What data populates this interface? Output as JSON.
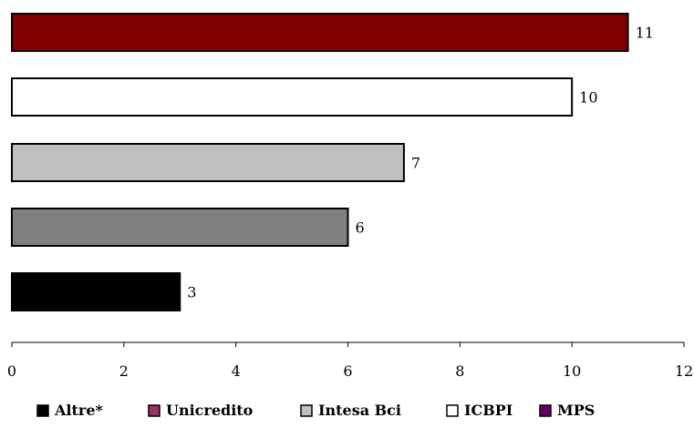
{
  "chart_data": {
    "type": "bar",
    "orientation": "horizontal",
    "categories": [
      "Unicredito",
      "Intesa Bci",
      "ICBPI",
      "MPS",
      "Altre*"
    ],
    "bars": [
      {
        "series": "Unicredito",
        "value": 11,
        "label": "11",
        "color": "#800000"
      },
      {
        "series": "ICBPI",
        "value": 10,
        "label": "10",
        "color": "#FFFFFF"
      },
      {
        "series": "Intesa Bci",
        "value": 7,
        "label": "7",
        "color": "#C0C0C0"
      },
      {
        "series": "MPS",
        "value": 6,
        "label": "6",
        "color": "#808080"
      },
      {
        "series": "Altre*",
        "value": 3,
        "label": "3",
        "color": "#000000"
      }
    ],
    "xlim": [
      0,
      12
    ],
    "xticks": [
      "0",
      "2",
      "4",
      "6",
      "8",
      "10",
      "12"
    ],
    "title": "",
    "xlabel": "",
    "ylabel": "",
    "grid": false,
    "legend": {
      "placement": "bottom",
      "items": [
        {
          "label": "Altre*",
          "color": "#000000"
        },
        {
          "label": "Unicredito",
          "color": "#993366"
        },
        {
          "label": "Intesa Bci",
          "color": "#C0C0C0"
        },
        {
          "label": "ICBPI",
          "color": "#FFFFFF"
        },
        {
          "label": "MPS",
          "color": "#660066"
        }
      ]
    }
  }
}
